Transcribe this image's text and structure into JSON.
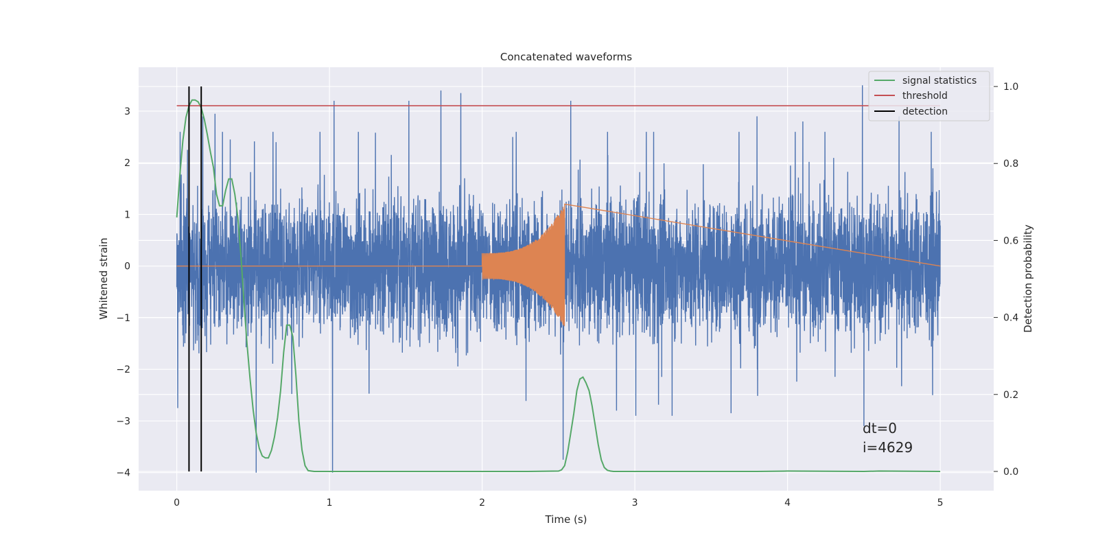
{
  "chart_data": {
    "type": "line",
    "title": "Concatenated waveforms",
    "xlabel": "Time (s)",
    "ylabel": "Whitened strain",
    "ylabel_right": "Detection probability",
    "xlim": [
      -0.25,
      5.35
    ],
    "ylim": [
      -4.35,
      3.85
    ],
    "ylim_right": [
      -0.05,
      1.05
    ],
    "xticks": [
      0,
      1,
      2,
      3,
      4,
      5
    ],
    "yticks": [
      -4,
      -3,
      -2,
      -1,
      0,
      1,
      2,
      3
    ],
    "yticks_right": [
      0.0,
      0.2,
      0.4,
      0.6,
      0.8,
      1.0
    ],
    "xtick_labels": [
      "0",
      "1",
      "2",
      "3",
      "4",
      "5"
    ],
    "ytick_labels": [
      "−4",
      "−3",
      "−2",
      "−1",
      "0",
      "1",
      "2",
      "3"
    ],
    "ytick_labels_right": [
      "0.0",
      "0.2",
      "0.4",
      "0.6",
      "0.8",
      "1.0"
    ],
    "grid": true,
    "legend_position": "top-right",
    "colors": {
      "background": "#eaeaf2",
      "grid": "#ffffff",
      "strain": "#4c72b0",
      "template": "#dd8452",
      "signal": "#55a868",
      "threshold": "#c44e52",
      "detection": "#000000"
    },
    "series": [
      {
        "name": "",
        "axis": "left",
        "color": "#4c72b0",
        "description_values": "whitened strain noise, dense oscillation",
        "x_range": [
          0,
          5
        ],
        "envelope_peak_points": [
          {
            "x": 0.07,
            "y": 2.25
          },
          {
            "x": 0.17,
            "y": 2.9
          },
          {
            "x": 0.25,
            "y": 2.95
          },
          {
            "x": 0.35,
            "y": 2.45
          },
          {
            "x": 0.52,
            "y": -4.0
          },
          {
            "x": 0.65,
            "y": 2.4
          },
          {
            "x": 1.02,
            "y": -4.0
          },
          {
            "x": 1.03,
            "y": 3.2
          },
          {
            "x": 1.52,
            "y": 3.2
          },
          {
            "x": 1.73,
            "y": 3.4
          },
          {
            "x": 1.86,
            "y": 3.35
          },
          {
            "x": 2.2,
            "y": 2.5
          },
          {
            "x": 2.53,
            "y": -3.75
          },
          {
            "x": 2.58,
            "y": 3.2
          },
          {
            "x": 2.88,
            "y": -2.8
          },
          {
            "x": 3.63,
            "y": -2.85
          },
          {
            "x": 3.8,
            "y": 2.9
          },
          {
            "x": 4.1,
            "y": 2.8
          },
          {
            "x": 4.49,
            "y": 3.5
          },
          {
            "x": 4.5,
            "y": -3.1
          },
          {
            "x": 4.73,
            "y": 2.9
          },
          {
            "x": 4.95,
            "y": -2.5
          }
        ]
      },
      {
        "name": "",
        "axis": "left",
        "color": "#dd8452",
        "description_values": "chirp template",
        "chirp": {
          "start": 2.0,
          "end": 2.54,
          "amp_start": 0.25,
          "amp_end": 1.2
        }
      },
      {
        "name": "signal statistics",
        "axis": "right",
        "color": "#55a868",
        "x": [
          0.0,
          0.02,
          0.04,
          0.06,
          0.08,
          0.1,
          0.12,
          0.14,
          0.16,
          0.18,
          0.2,
          0.22,
          0.24,
          0.26,
          0.28,
          0.3,
          0.32,
          0.34,
          0.36,
          0.38,
          0.4,
          0.42,
          0.44,
          0.46,
          0.48,
          0.5,
          0.52,
          0.54,
          0.56,
          0.58,
          0.6,
          0.62,
          0.64,
          0.66,
          0.68,
          0.7,
          0.72,
          0.74,
          0.76,
          0.78,
          0.8,
          0.82,
          0.84,
          0.86,
          0.9,
          1.0,
          1.5,
          2.0,
          2.3,
          2.5,
          2.52,
          2.54,
          2.56,
          2.58,
          2.6,
          2.62,
          2.64,
          2.66,
          2.68,
          2.7,
          2.72,
          2.74,
          2.76,
          2.78,
          2.8,
          2.82,
          2.84,
          2.86,
          2.9,
          3.0,
          3.5,
          3.8,
          4.0,
          4.5,
          4.6,
          5.0
        ],
        "values": [
          0.66,
          0.77,
          0.86,
          0.92,
          0.95,
          0.965,
          0.965,
          0.96,
          0.945,
          0.915,
          0.875,
          0.83,
          0.79,
          0.72,
          0.69,
          0.69,
          0.73,
          0.76,
          0.76,
          0.72,
          0.66,
          0.56,
          0.44,
          0.33,
          0.24,
          0.16,
          0.1,
          0.06,
          0.04,
          0.035,
          0.035,
          0.055,
          0.09,
          0.14,
          0.21,
          0.31,
          0.38,
          0.38,
          0.35,
          0.25,
          0.13,
          0.055,
          0.015,
          0.002,
          0.0,
          0.0,
          0.0,
          0.0,
          0.0,
          0.001,
          0.004,
          0.015,
          0.05,
          0.1,
          0.15,
          0.21,
          0.24,
          0.245,
          0.23,
          0.21,
          0.17,
          0.12,
          0.07,
          0.03,
          0.01,
          0.003,
          0.001,
          0.0,
          0.0,
          0.0,
          0.0,
          0.0,
          0.001,
          0.0,
          0.001,
          0.0
        ]
      },
      {
        "name": "threshold",
        "axis": "right",
        "color": "#c44e52",
        "x": [
          0,
          5
        ],
        "values": [
          0.95,
          0.95
        ]
      },
      {
        "name": "detection",
        "axis": "right",
        "color": "#000000",
        "vlines_x": [
          0.08,
          0.16
        ],
        "vline_range": [
          0,
          1
        ]
      }
    ],
    "legend": [
      "signal statistics",
      "threshold",
      "detection"
    ],
    "annotation": [
      "dt=0",
      "i=4629"
    ]
  }
}
